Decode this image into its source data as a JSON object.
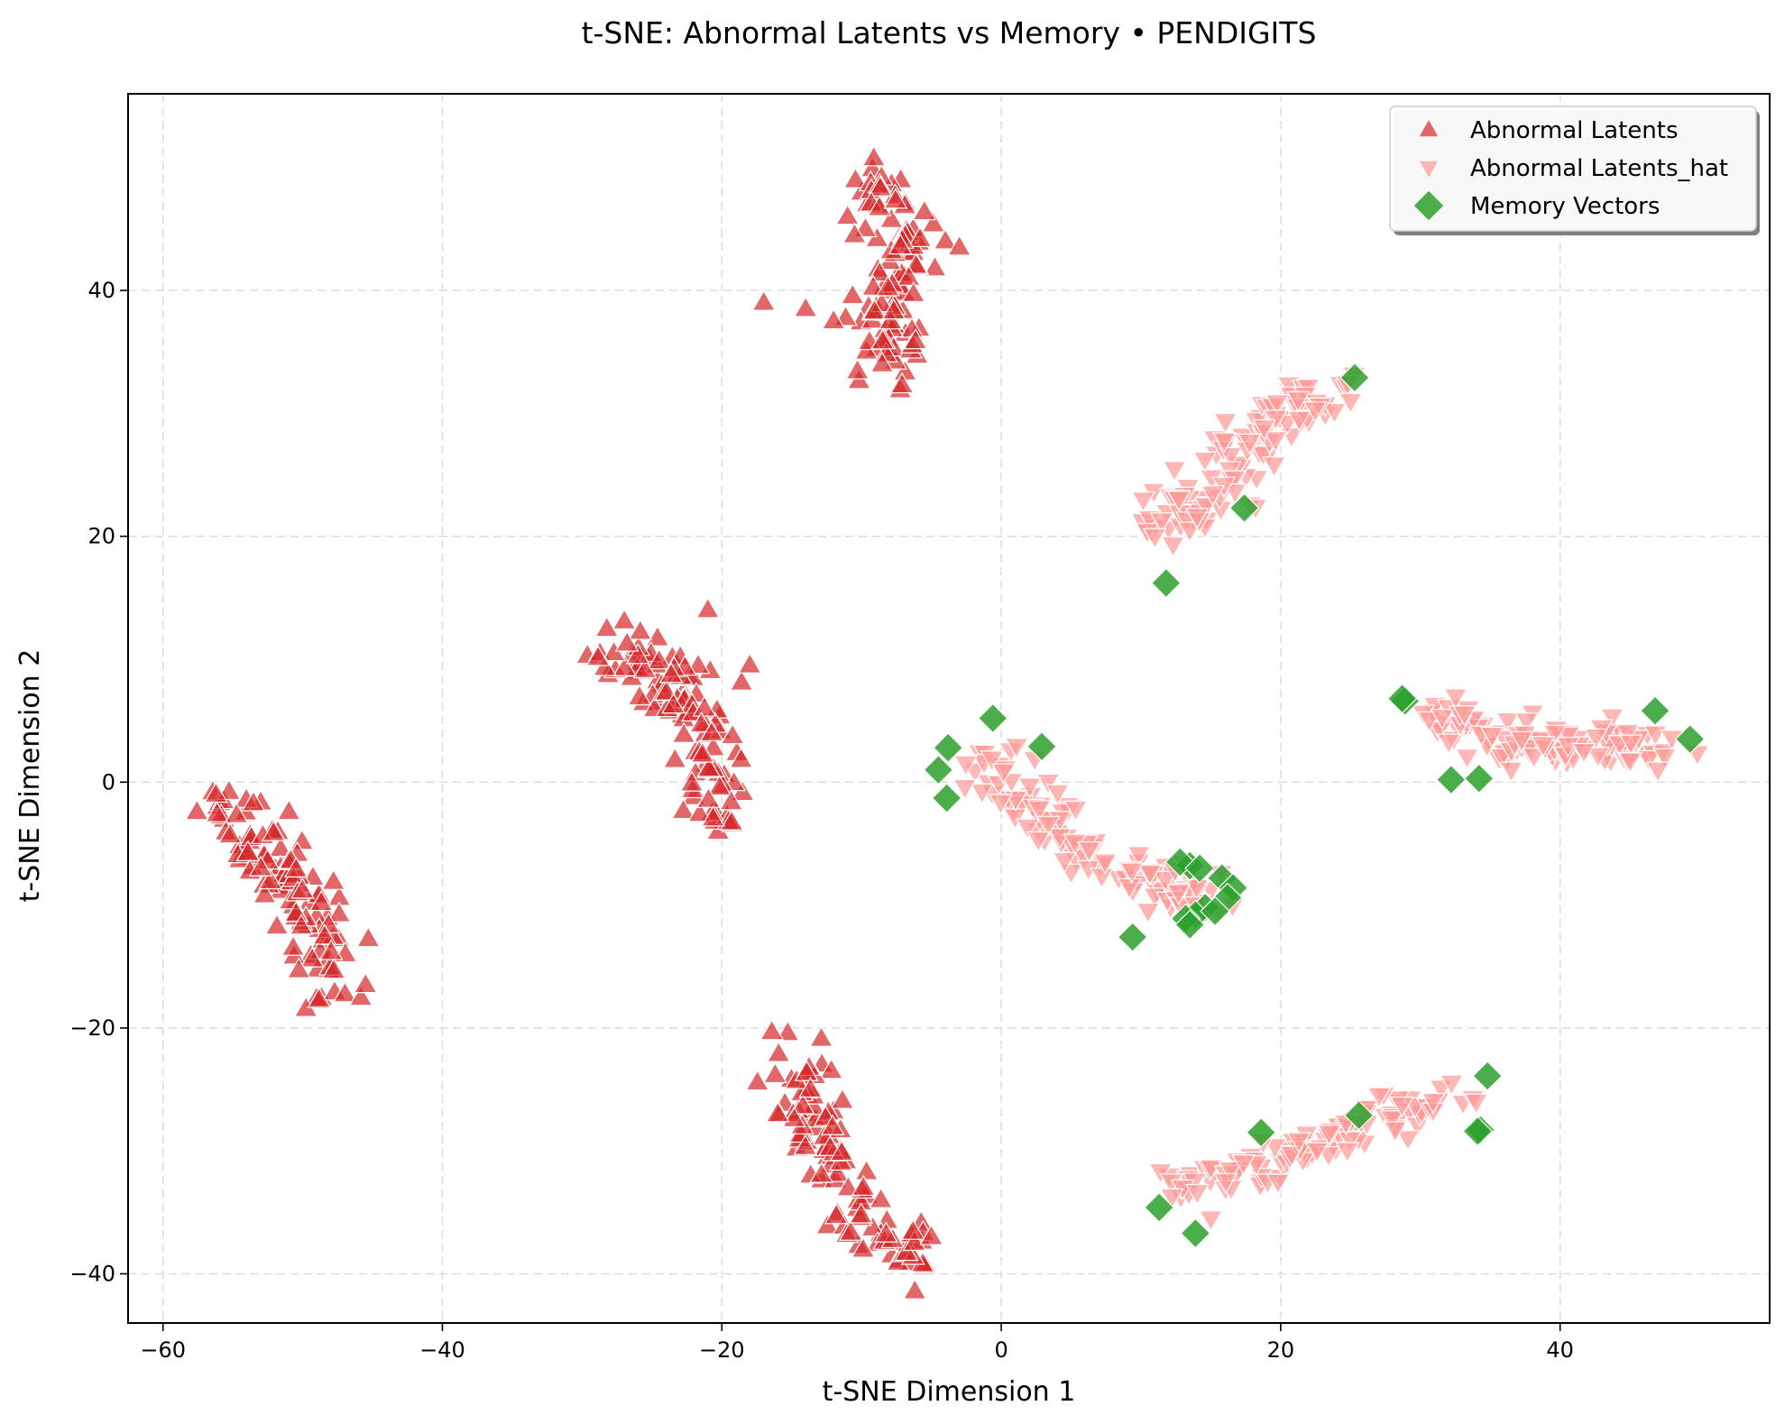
{
  "chart_data": {
    "type": "scatter",
    "title": "t-SNE: Abnormal Latents vs Memory • PENDIGITS",
    "xlabel": "t-SNE Dimension 1",
    "ylabel": "t-SNE Dimension 2",
    "xlim": [
      -62.5,
      55
    ],
    "ylim": [
      -44,
      56
    ],
    "xticks": [
      -60,
      -40,
      -20,
      0,
      20,
      40
    ],
    "xtick_labels": [
      "−60",
      "−40",
      "−20",
      "0",
      "20",
      "40"
    ],
    "yticks": [
      -40,
      -20,
      0,
      20,
      40
    ],
    "ytick_labels": [
      "−40",
      "−20",
      "0",
      "20",
      "40"
    ],
    "grid": true,
    "legend_position": "top-right",
    "series": [
      {
        "name": "Abnormal Latents",
        "marker": "triangle-up",
        "color": "#d62728",
        "clusters": [
          {
            "center": [
              -50.5,
              -9
            ],
            "count": 110,
            "points_along": [
              [
                -56,
                -2
              ],
              [
                -52,
                -6
              ],
              [
                -49,
                -12
              ],
              [
                -47,
                -17
              ]
            ],
            "spread": 2.2
          },
          {
            "center": [
              -24,
              8
            ],
            "count": 110,
            "points_along": [
              [
                -28,
                12
              ],
              [
                -24,
                8
              ],
              [
                -21,
                4
              ],
              [
                -20.5,
                -3
              ]
            ],
            "spread": 2.3
          },
          {
            "center": [
              -9,
              41
            ],
            "count": 100,
            "points_along": [
              [
                -9,
                50
              ],
              [
                -6,
                44
              ],
              [
                -9,
                38
              ],
              [
                -7,
                33
              ]
            ],
            "spread": 2.0
          },
          {
            "center": [
              -12,
              -32
            ],
            "count": 105,
            "points_along": [
              [
                -15,
                -22
              ],
              [
                -13,
                -30
              ],
              [
                -10,
                -35
              ],
              [
                -6,
                -39
              ]
            ],
            "spread": 2.0
          }
        ],
        "extra_points": [
          [
            -12,
            37.5
          ],
          [
            -14,
            38.5
          ],
          [
            -17,
            39
          ],
          [
            -11,
            46
          ],
          [
            -10.5,
            44.5
          ],
          [
            -4,
            44
          ],
          [
            -3,
            43.5
          ],
          [
            -45.5,
            -16.5
          ],
          [
            -53,
            -7
          ],
          [
            -18,
            9.5
          ],
          [
            -21,
            14
          ],
          [
            -5,
            -37
          ],
          [
            -16,
            -27
          ]
        ]
      },
      {
        "name": "Abnormal Latents_hat",
        "marker": "triangle-down",
        "color": "#ff9896",
        "clusters": [
          {
            "center": [
              16,
              24
            ],
            "count": 110,
            "points_along": [
              [
                11,
                21
              ],
              [
                15,
                23
              ],
              [
                18,
                28
              ],
              [
                24,
                32
              ]
            ],
            "spread": 1.9
          },
          {
            "center": [
              7,
              -6
            ],
            "count": 115,
            "points_along": [
              [
                -1,
                2
              ],
              [
                4,
                -4
              ],
              [
                10,
                -8
              ],
              [
                15,
                -10
              ]
            ],
            "spread": 2.0
          },
          {
            "center": [
              39,
              3
            ],
            "count": 110,
            "points_along": [
              [
                30,
                6
              ],
              [
                36,
                3
              ],
              [
                42,
                3
              ],
              [
                48,
                3
              ]
            ],
            "spread": 1.7
          },
          {
            "center": [
              23,
              -30
            ],
            "count": 115,
            "points_along": [
              [
                12,
                -33
              ],
              [
                19,
                -31
              ],
              [
                26,
                -28
              ],
              [
                33,
                -25
              ]
            ],
            "spread": 1.6
          }
        ],
        "extra_points": [
          [
            15,
            -35.5
          ],
          [
            11,
            20
          ],
          [
            25,
            31
          ],
          [
            36.5,
            1
          ],
          [
            47,
            1
          ],
          [
            34,
            -26
          ]
        ]
      },
      {
        "name": "Memory Vectors",
        "marker": "diamond",
        "color": "#2ca02c",
        "points": [
          [
            25.3,
            32.9
          ],
          [
            17.4,
            22.3
          ],
          [
            11.8,
            16.2
          ],
          [
            -0.6,
            5.2
          ],
          [
            2.9,
            2.9
          ],
          [
            -3.8,
            2.8
          ],
          [
            -4.5,
            1.0
          ],
          [
            -3.9,
            -1.3
          ],
          [
            13.5,
            -6.8
          ],
          [
            12.8,
            -6.5
          ],
          [
            14.2,
            -7.0
          ],
          [
            15.8,
            -7.8
          ],
          [
            16.6,
            -8.6
          ],
          [
            16.2,
            -9.4
          ],
          [
            14.6,
            -10.2
          ],
          [
            13.9,
            -10.8
          ],
          [
            13.2,
            -11.1
          ],
          [
            13.5,
            -11.6
          ],
          [
            15.3,
            -10.5
          ],
          [
            9.4,
            -12.6
          ],
          [
            28.9,
            6.6
          ],
          [
            28.7,
            6.8
          ],
          [
            32.2,
            0.2
          ],
          [
            34.2,
            0.3
          ],
          [
            46.8,
            5.8
          ],
          [
            49.3,
            3.5
          ],
          [
            34.8,
            -23.9
          ],
          [
            25.6,
            -27.1
          ],
          [
            18.6,
            -28.5
          ],
          [
            34.3,
            -28.3
          ],
          [
            34.1,
            -28.4
          ],
          [
            11.3,
            -34.6
          ],
          [
            13.9,
            -36.7
          ]
        ]
      }
    ]
  }
}
